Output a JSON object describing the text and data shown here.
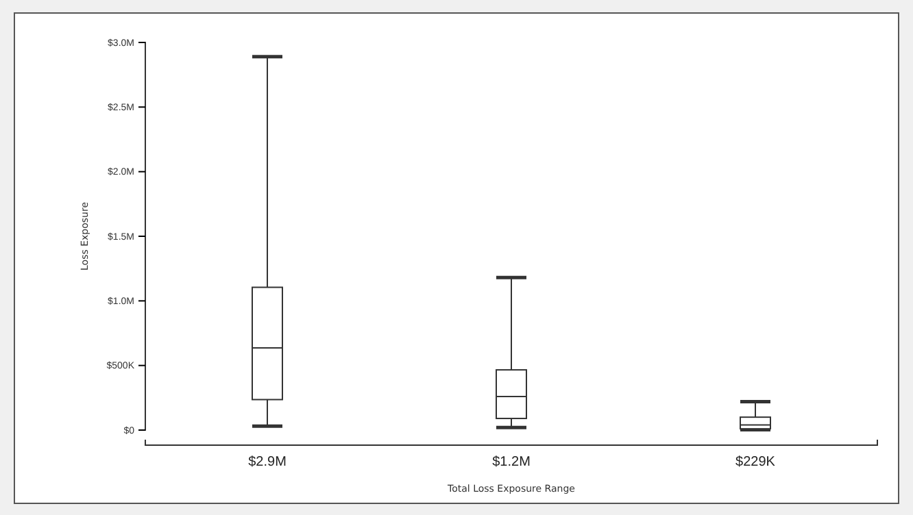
{
  "chart_data": {
    "type": "box",
    "xlabel": "Total Loss Exposure Range",
    "ylabel": "Loss Exposure",
    "categories": [
      "$2.9M",
      "$1.2M",
      "$229K"
    ],
    "boxes": [
      {
        "low": 30000,
        "q1": 236000,
        "median": 636000,
        "q3": 1105000,
        "high": 2890000
      },
      {
        "low": 20000,
        "q1": 90000,
        "median": 260000,
        "q3": 466000,
        "high": 1180000
      },
      {
        "low": 2000,
        "q1": 10000,
        "median": 40000,
        "q3": 100000,
        "high": 220000
      }
    ],
    "color": "#333333",
    "ylim": [
      0,
      3000000
    ],
    "yticks": [
      {
        "value": 0,
        "label": "$0"
      },
      {
        "value": 500000,
        "label": "$500K"
      },
      {
        "value": 1000000,
        "label": "$1.0M"
      },
      {
        "value": 1500000,
        "label": "$1.5M"
      },
      {
        "value": 2000000,
        "label": "$2.0M"
      },
      {
        "value": 2500000,
        "label": "$2.5M"
      },
      {
        "value": 3000000,
        "label": "$3.0M"
      }
    ],
    "grid": false
  }
}
